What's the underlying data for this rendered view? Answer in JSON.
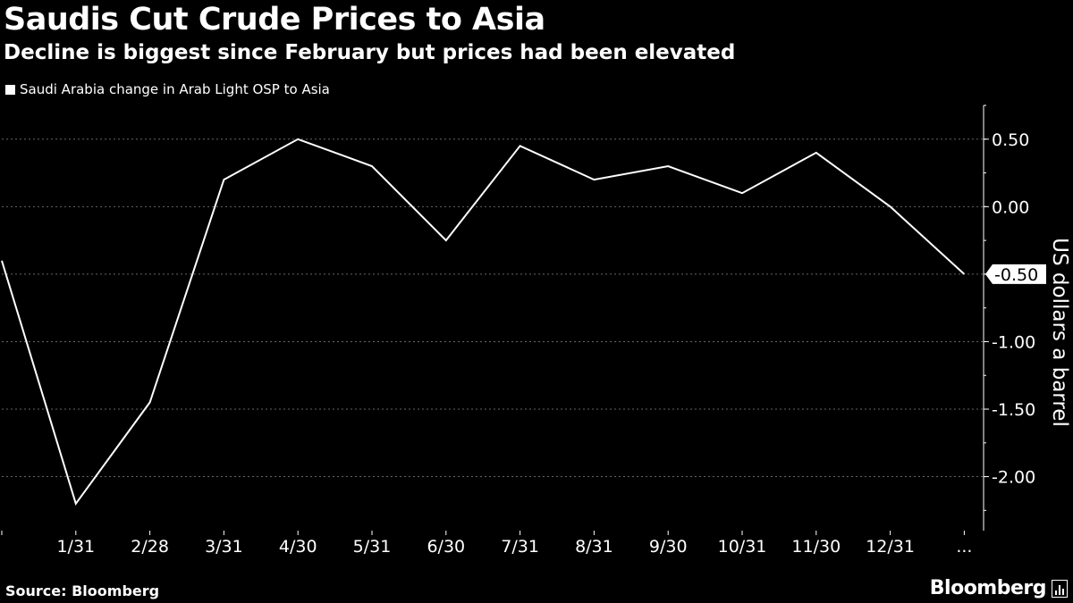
{
  "header": {
    "title": "Saudis Cut Crude Prices to Asia",
    "subtitle": "Decline is biggest since February but prices had been elevated"
  },
  "footer": {
    "source": "Source: Bloomberg",
    "brand": "Bloomberg"
  },
  "colors": {
    "background": "#000000",
    "line": "#ffffff",
    "grid": "#666666"
  },
  "chart_data": {
    "type": "line",
    "title": "Saudis Cut Crude Prices to Asia",
    "subtitle": "Decline is biggest since February but prices had been elevated",
    "xlabel": "",
    "ylabel": "US dollars a barrel",
    "ylim": [
      -2.4,
      0.75
    ],
    "yticks": [
      0.5,
      0,
      -0.5,
      -1,
      -1.5,
      -2
    ],
    "ytick_labels": [
      "0.50",
      "0.00",
      "-0.50",
      "-1.00",
      "-1.50",
      "-2.00"
    ],
    "grid": "horizontal dashed",
    "legend": "top-left",
    "x_labels": [
      "",
      "1/31",
      "2/28",
      "3/31",
      "4/30",
      "5/31",
      "6/30",
      "7/31",
      "8/31",
      "9/30",
      "10/31",
      "11/30",
      "12/31",
      "..."
    ],
    "series": [
      {
        "name": "Saudi Arabia change in Arab Light OSP to Asia",
        "values": [
          -0.4,
          -2.2,
          -1.45,
          0.2,
          0.5,
          0.3,
          -0.25,
          0.45,
          0.2,
          0.3,
          0.1,
          0.4,
          0.0,
          -0.5
        ]
      }
    ],
    "last_value_label": "-0.50"
  }
}
